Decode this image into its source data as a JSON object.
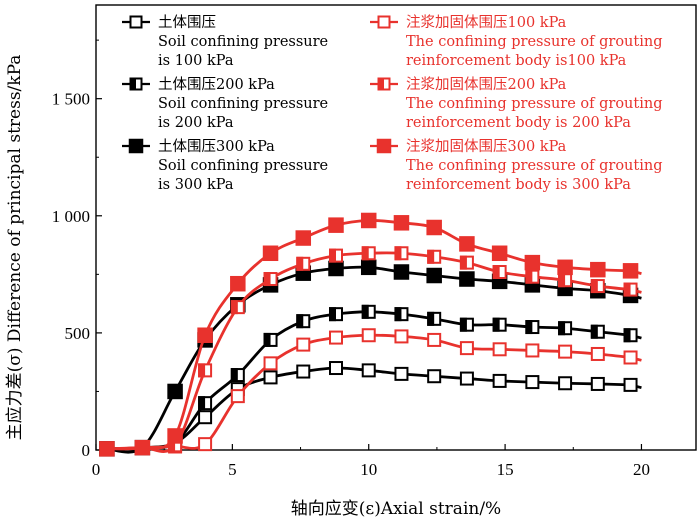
{
  "chart_data": {
    "type": "line",
    "xlabel": "轴向应变(ε)Axial strain/%",
    "ylabel": "主应力差(σ) Difference of principal stress/kPa",
    "xlim": [
      0,
      22
    ],
    "ylim": [
      0,
      1900
    ],
    "x_ticks": [
      0,
      5,
      10,
      15,
      20
    ],
    "x_tick_labels": [
      "0",
      "5",
      "10",
      "15",
      "20"
    ],
    "y_ticks": [
      0,
      500,
      1000,
      1500
    ],
    "y_tick_labels": [
      "0",
      "500",
      "1 000",
      "1 500"
    ],
    "grid": false,
    "legend_position": "top",
    "series": [
      {
        "name": "土体围压 Soil confining pressure is 100 kPa",
        "legend_lines": [
          "土体围压",
          "Soil confining pressure",
          "is 100 kPa"
        ],
        "color": "#000000",
        "marker": "open-square",
        "points": [
          [
            0.4,
            5
          ],
          [
            1.7,
            10
          ],
          [
            2.9,
            30
          ],
          [
            4.0,
            140
          ],
          [
            5.2,
            260
          ],
          [
            6.4,
            310
          ],
          [
            7.6,
            335
          ],
          [
            8.8,
            350
          ],
          [
            10.0,
            340
          ],
          [
            11.2,
            325
          ],
          [
            12.4,
            315
          ],
          [
            13.6,
            305
          ],
          [
            14.8,
            295
          ],
          [
            16.0,
            290
          ],
          [
            17.2,
            285
          ],
          [
            18.4,
            282
          ],
          [
            19.6,
            278
          ]
        ]
      },
      {
        "name": "土体围压200 kPa Soil confining pressure is 200 kPa",
        "legend_lines": [
          "土体围压200 kPa",
          "Soil confining pressure",
          "is 200 kPa"
        ],
        "color": "#000000",
        "marker": "half-square",
        "points": [
          [
            0.4,
            5
          ],
          [
            1.7,
            10
          ],
          [
            2.9,
            30
          ],
          [
            4.0,
            200
          ],
          [
            5.2,
            320
          ],
          [
            6.4,
            470
          ],
          [
            7.6,
            550
          ],
          [
            8.8,
            580
          ],
          [
            10.0,
            590
          ],
          [
            11.2,
            580
          ],
          [
            12.4,
            560
          ],
          [
            13.6,
            535
          ],
          [
            14.8,
            535
          ],
          [
            16.0,
            525
          ],
          [
            17.2,
            520
          ],
          [
            18.4,
            505
          ],
          [
            19.6,
            490
          ]
        ]
      },
      {
        "name": "土体围压300 kPa Soil confining pressure is 300 kPa",
        "legend_lines": [
          "土体围压300 kPa",
          "Soil confining pressure",
          "is 300 kPa"
        ],
        "color": "#000000",
        "marker": "filled-square",
        "points": [
          [
            0.4,
            5
          ],
          [
            1.7,
            10
          ],
          [
            2.9,
            250
          ],
          [
            4.0,
            470
          ],
          [
            5.2,
            620
          ],
          [
            6.4,
            705
          ],
          [
            7.6,
            755
          ],
          [
            8.8,
            775
          ],
          [
            10.0,
            780
          ],
          [
            11.2,
            760
          ],
          [
            12.4,
            745
          ],
          [
            13.6,
            730
          ],
          [
            14.8,
            720
          ],
          [
            16.0,
            705
          ],
          [
            17.2,
            690
          ],
          [
            18.4,
            680
          ],
          [
            19.6,
            660
          ]
        ]
      },
      {
        "name": "注浆加固体围压100 kPa The confining pressure of grouting reinforcement body is100 kPa",
        "legend_lines": [
          "注浆加固体围压100 kPa",
          "The confining pressure of grouting",
          "reinforcement body is100 kPa"
        ],
        "color": "#e8322d",
        "marker": "open-square",
        "points": [
          [
            0.4,
            5
          ],
          [
            1.7,
            10
          ],
          [
            2.9,
            15
          ],
          [
            4.0,
            25
          ],
          [
            5.2,
            230
          ],
          [
            6.4,
            370
          ],
          [
            7.6,
            450
          ],
          [
            8.8,
            480
          ],
          [
            10.0,
            490
          ],
          [
            11.2,
            485
          ],
          [
            12.4,
            470
          ],
          [
            13.6,
            435
          ],
          [
            14.8,
            430
          ],
          [
            16.0,
            425
          ],
          [
            17.2,
            420
          ],
          [
            18.4,
            410
          ],
          [
            19.6,
            395
          ]
        ]
      },
      {
        "name": "注浆加固体围压200 kPa The confining pressure of grouting reinforcement body is 200 kPa",
        "legend_lines": [
          "注浆加固体围压200 kPa",
          "The confining pressure of grouting",
          "reinforcement body is 200 kPa"
        ],
        "color": "#e8322d",
        "marker": "half-square",
        "points": [
          [
            0.4,
            5
          ],
          [
            1.7,
            10
          ],
          [
            2.9,
            20
          ],
          [
            4.0,
            340
          ],
          [
            5.2,
            610
          ],
          [
            6.4,
            730
          ],
          [
            7.6,
            795
          ],
          [
            8.8,
            830
          ],
          [
            10.0,
            840
          ],
          [
            11.2,
            840
          ],
          [
            12.4,
            825
          ],
          [
            13.6,
            800
          ],
          [
            14.8,
            760
          ],
          [
            16.0,
            740
          ],
          [
            17.2,
            725
          ],
          [
            18.4,
            700
          ],
          [
            19.6,
            685
          ]
        ]
      },
      {
        "name": "注浆加固体围压300 kPa The confining pressure of grouting reinforcement body is 300 kPa",
        "legend_lines": [
          "注浆加固体围压300 kPa",
          "The confining pressure of grouting",
          "reinforcement body is 300 kPa"
        ],
        "color": "#e8322d",
        "marker": "filled-square",
        "points": [
          [
            0.4,
            5
          ],
          [
            1.7,
            10
          ],
          [
            2.9,
            60
          ],
          [
            4.0,
            490
          ],
          [
            5.2,
            710
          ],
          [
            6.4,
            840
          ],
          [
            7.6,
            905
          ],
          [
            8.8,
            960
          ],
          [
            10.0,
            980
          ],
          [
            11.2,
            970
          ],
          [
            12.4,
            950
          ],
          [
            13.6,
            880
          ],
          [
            14.8,
            840
          ],
          [
            16.0,
            800
          ],
          [
            17.2,
            780
          ],
          [
            18.4,
            770
          ],
          [
            19.6,
            765
          ]
        ]
      }
    ]
  }
}
